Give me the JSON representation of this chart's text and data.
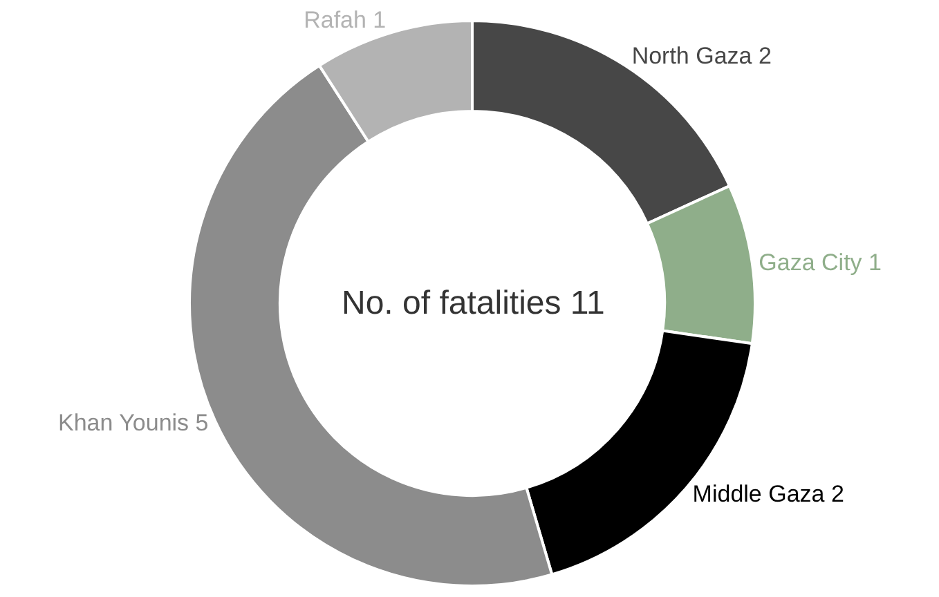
{
  "chart_data": {
    "type": "donut",
    "categories": [
      "North Gaza 2",
      "Gaza City 1",
      "Middle Gaza 2",
      "Khan Younis 5",
      "Rafah 1"
    ],
    "values": [
      2,
      1,
      2,
      5,
      1
    ],
    "colors": [
      "#474747",
      "#8fae8a",
      "#000000",
      "#8c8c8c",
      "#b3b3b3"
    ],
    "annotations": [
      "No. of fatalities 11"
    ]
  }
}
